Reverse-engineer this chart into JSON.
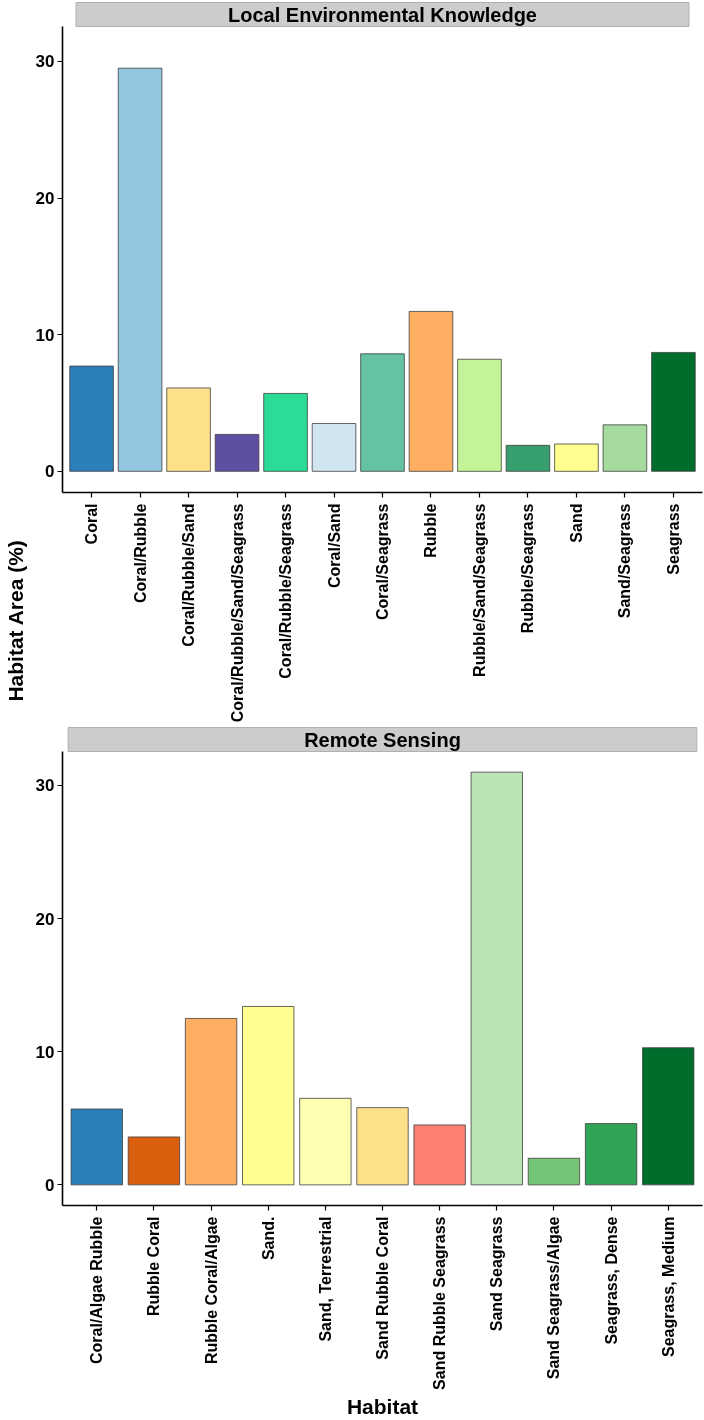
{
  "chart_data": [
    {
      "type": "bar",
      "title": "Local Environmental Knowledge",
      "ylabel": "Habitat Area (%)",
      "categories": [
        "Coral",
        "Coral/Rubble",
        "Coral/Rubble/Sand",
        "Coral/Rubble/Sand/Seagrass",
        "Coral/Rubble/Seagrass",
        "Coral/Sand",
        "Coral/Seagrass",
        "Rubble",
        "Rubble/Sand/Seagrass",
        "Rubble/Seagrass",
        "Sand",
        "Sand/Seagrass",
        "Seagrass"
      ],
      "values": [
        7.7,
        29.5,
        6.1,
        2.7,
        5.7,
        3.5,
        8.6,
        11.7,
        8.2,
        1.9,
        2.0,
        3.4,
        8.7
      ],
      "colors": [
        "#2c7fb8",
        "#92c5de",
        "#fee08b",
        "#5e4fa2",
        "#2cdc96",
        "#d1e5f0",
        "#66c2a5",
        "#fdae61",
        "#c4f497",
        "#379e6d",
        "#ffff8f",
        "#a6dba0",
        "#006d2c"
      ],
      "ylim": [
        -1.55,
        32.55
      ],
      "yticks": [
        0,
        10,
        20,
        30
      ]
    },
    {
      "type": "bar",
      "title": "Remote Sensing",
      "xlabel": "Habitat",
      "categories": [
        "Coral/Algae Rubble",
        "Rubble Coral",
        "Rubble Coral/Algae",
        "Sand.",
        "Sand, Terrestrial",
        "Sand Rubble Coral",
        "Sand Rubble Seagrass",
        "Sand Seagrass",
        "Sand Seagrass/Algae",
        "Seagrass, Dense",
        "Seagrass, Medium"
      ],
      "values": [
        5.7,
        3.6,
        12.5,
        13.4,
        6.5,
        5.8,
        4.5,
        31.0,
        2.0,
        4.6,
        10.3
      ],
      "colors": [
        "#2c7fb8",
        "#d95f0e",
        "#fdae61",
        "#ffff8f",
        "#ffffb2",
        "#fee08b",
        "#fb8072",
        "#bae4b3",
        "#74c476",
        "#31a354",
        "#006d2c"
      ],
      "ylim": [
        -1.55,
        32.55
      ],
      "yticks": [
        0,
        10,
        20,
        30
      ]
    }
  ]
}
